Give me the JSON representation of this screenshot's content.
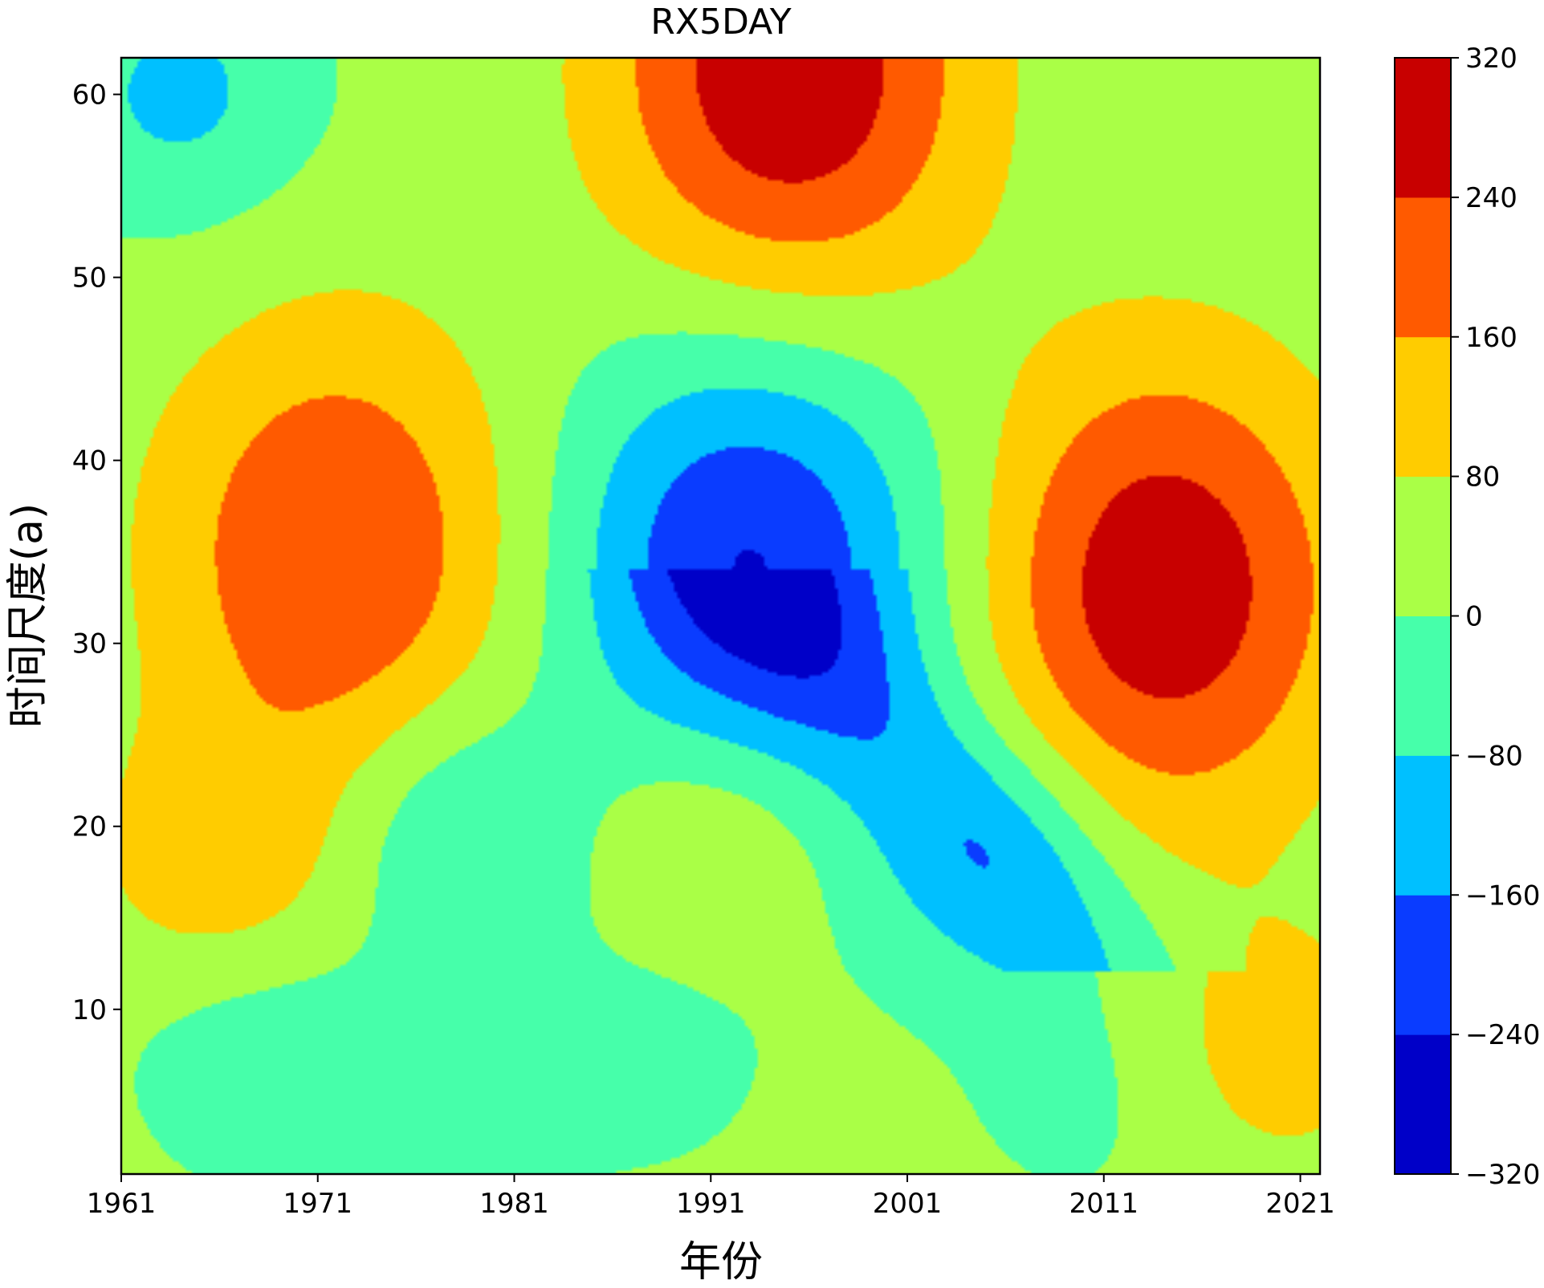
{
  "chart_data": {
    "type": "heatmap",
    "subtype": "filled-contour",
    "title": "RX5DAY",
    "xlabel": "年份",
    "ylabel": "时间尺度(a)",
    "xlim": [
      1961,
      2022
    ],
    "ylim": [
      1,
      62
    ],
    "xticks": [
      1961,
      1971,
      1981,
      1991,
      2001,
      2011,
      2021
    ],
    "yticks": [
      10,
      20,
      30,
      40,
      50,
      60
    ],
    "levels": [
      -320,
      -240,
      -160,
      -80,
      0,
      80,
      160,
      240,
      320
    ],
    "level_colors": [
      "#0000c8",
      "#0a3cff",
      "#00c0ff",
      "#46ffaa",
      "#aaff46",
      "#ffcc00",
      "#ff5a00",
      "#c80000"
    ],
    "colorbar": {
      "placement": "right",
      "tick_labels": [
        "320",
        "240",
        "160",
        "80",
        "0",
        "−80",
        "−160",
        "−240",
        "−320"
      ]
    },
    "features": [
      {
        "kind": "max",
        "x": 1995,
        "y": 61,
        "value": 290
      },
      {
        "kind": "max",
        "x": 1972,
        "y": 35,
        "value": 220
      },
      {
        "kind": "max",
        "x": 2014,
        "y": 33,
        "value": 280
      },
      {
        "kind": "min",
        "x": 1993,
        "y": 34,
        "value": -270
      },
      {
        "kind": "min",
        "x": 1964,
        "y": 60,
        "value": -120
      },
      {
        "kind": "max",
        "x": 1966,
        "y": 18,
        "value": 110
      },
      {
        "kind": "min",
        "x": 1978,
        "y": 20,
        "value": -110
      },
      {
        "kind": "max",
        "x": 1991,
        "y": 20,
        "value": 100
      },
      {
        "kind": "min",
        "x": 2005,
        "y": 18,
        "value": -110
      },
      {
        "kind": "max",
        "x": 2020,
        "y": 8,
        "value": 100
      },
      {
        "kind": "min",
        "x": 1968,
        "y": 8,
        "value": -70
      },
      {
        "kind": "min",
        "x": 1978,
        "y": 5,
        "value": -40
      },
      {
        "kind": "min",
        "x": 1988,
        "y": 8,
        "value": -40
      },
      {
        "kind": "min",
        "x": 2010,
        "y": 6,
        "value": -40
      }
    ]
  }
}
